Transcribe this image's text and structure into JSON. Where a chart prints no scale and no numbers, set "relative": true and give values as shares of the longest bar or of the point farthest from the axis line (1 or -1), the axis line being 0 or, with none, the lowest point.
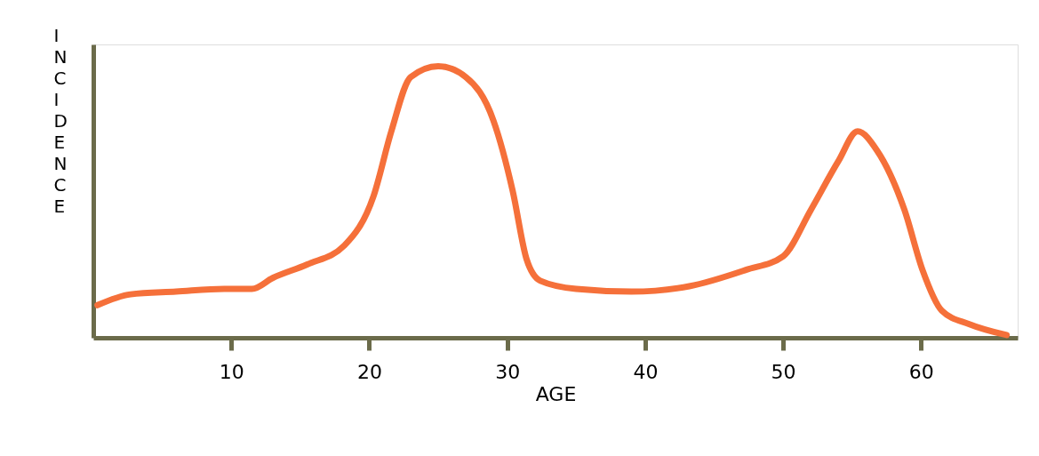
{
  "chart_data": {
    "type": "line",
    "xlabel": "AGE",
    "ylabel": "INCIDENCE",
    "relative": true,
    "xlim": [
      0,
      67
    ],
    "xticks": [
      10,
      20,
      30,
      40,
      50,
      60
    ],
    "grid": false,
    "line_style": "solid",
    "x": [
      0.3,
      2.7,
      6,
      9.5,
      11.5,
      13,
      15.5,
      18.2,
      20.3,
      21.6,
      23,
      25,
      27,
      29,
      30.4,
      31.4,
      32.4,
      35,
      39,
      43.2,
      47.3,
      50,
      52,
      54,
      55.4,
      56.8,
      58.8,
      60.1,
      61.5,
      63.5,
      66.2
    ],
    "series": [
      {
        "color": "#f5703a",
        "values": [
          0.12,
          0.16,
          0.17,
          0.18,
          0.18,
          0.22,
          0.27,
          0.34,
          0.52,
          0.76,
          0.96,
          1.0,
          0.96,
          0.8,
          0.54,
          0.29,
          0.21,
          0.18,
          0.17,
          0.19,
          0.25,
          0.3,
          0.47,
          0.65,
          0.76,
          0.69,
          0.47,
          0.25,
          0.1,
          0.05,
          0.01
        ]
      }
    ]
  }
}
